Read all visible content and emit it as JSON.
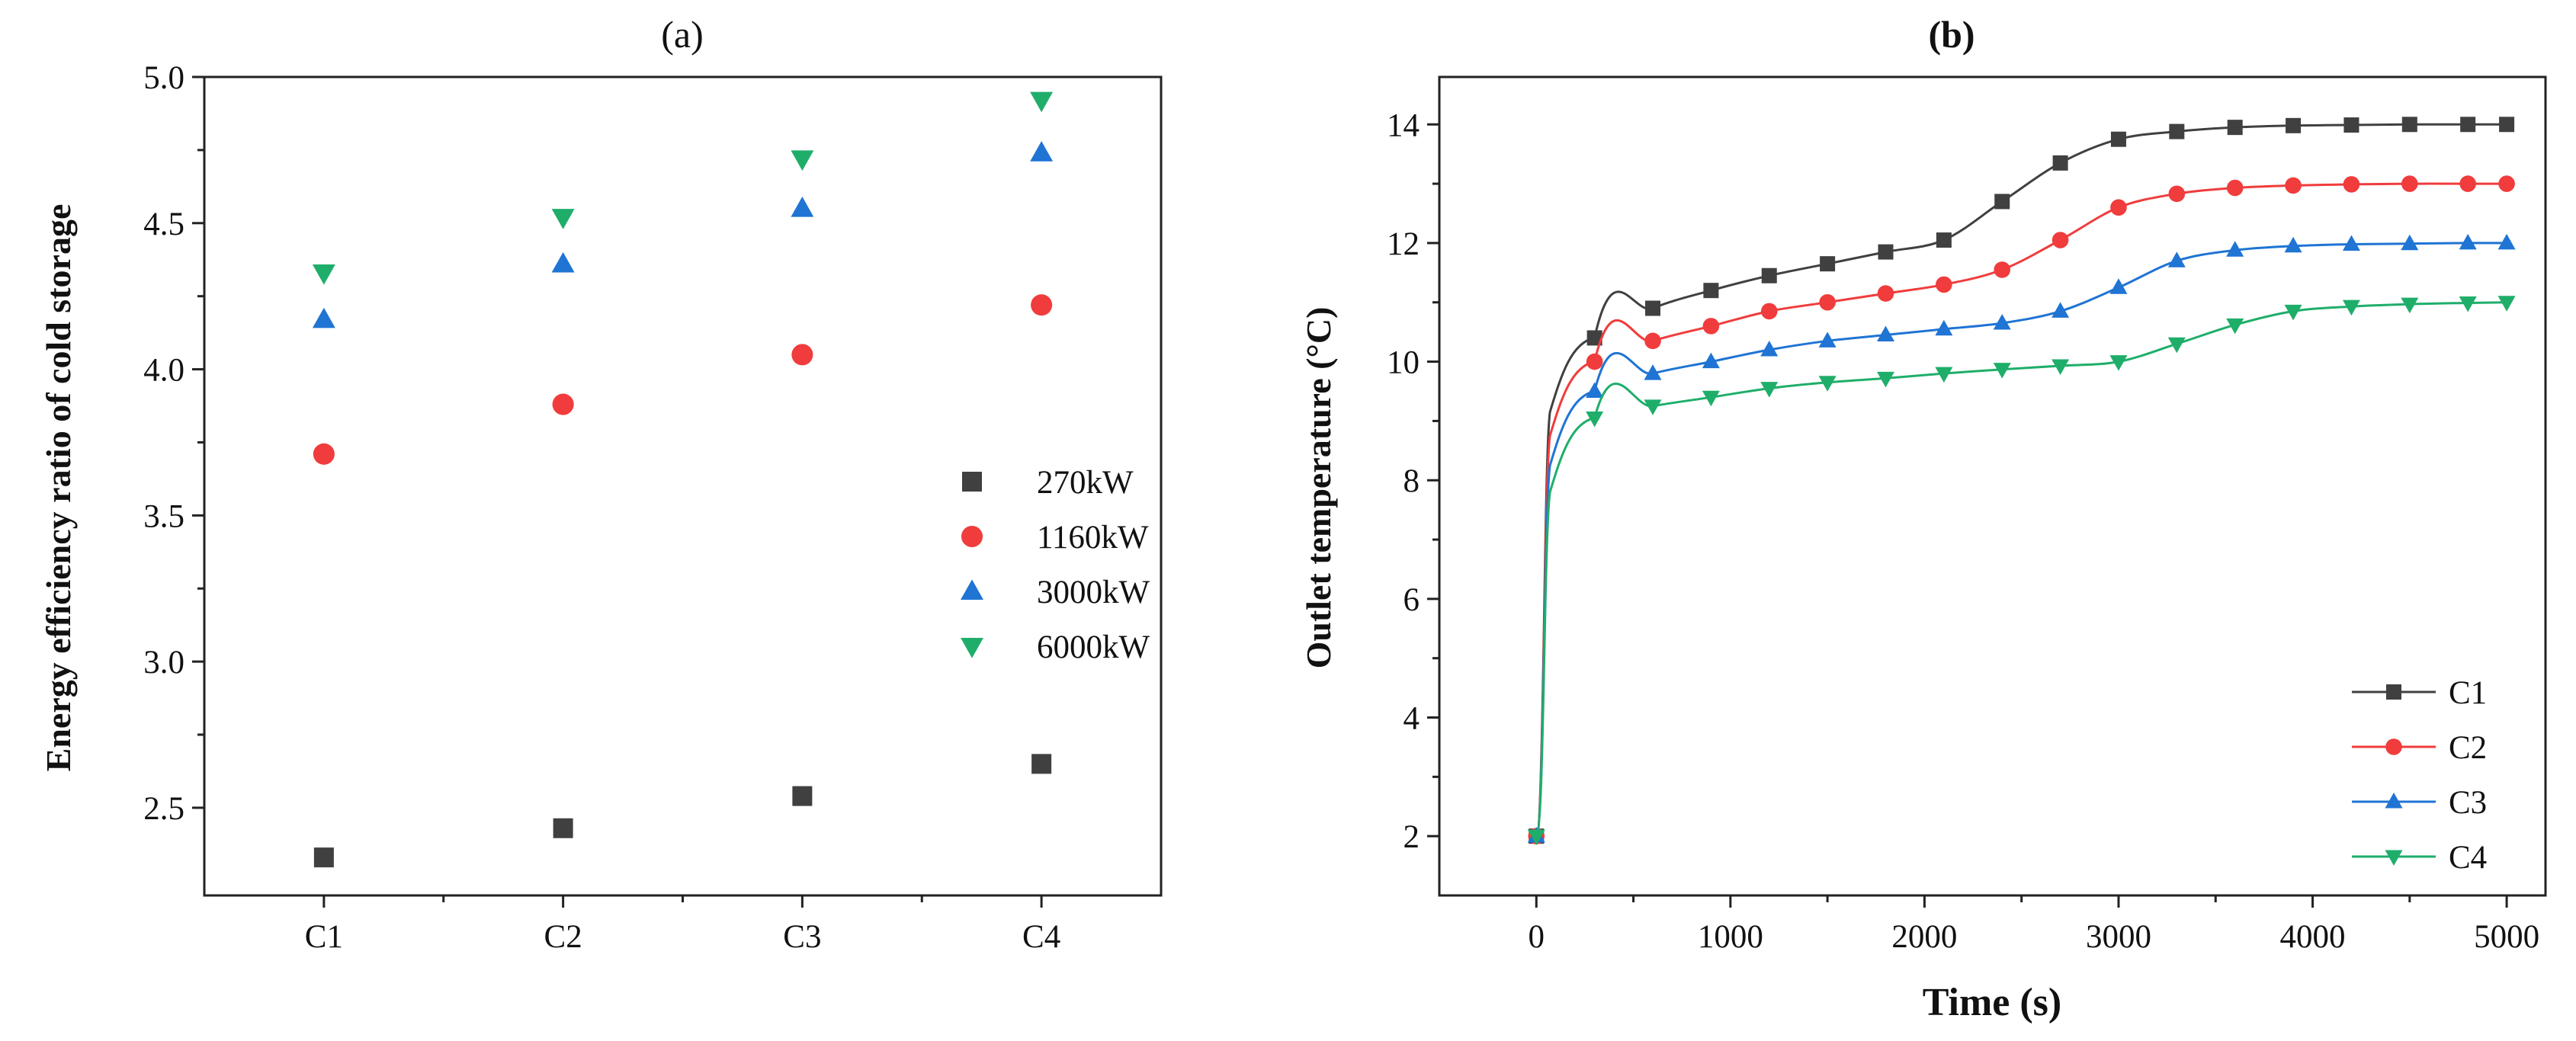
{
  "chart_data": [
    {
      "panel_label": "(a)",
      "type": "scatter",
      "title": "",
      "xlabel": "",
      "ylabel": "Energy efficiency ratio of cold storage",
      "categories": [
        "C1",
        "C2",
        "C3",
        "C4"
      ],
      "ylim": [
        2.2,
        5.0
      ],
      "yticks": [
        "2.5",
        "3.0",
        "3.5",
        "4.0",
        "4.5",
        "5.0"
      ],
      "grid": false,
      "legend_position": "center-right",
      "series": [
        {
          "name": "270kW",
          "marker": "square",
          "color": "#404040",
          "values": [
            2.33,
            2.43,
            2.54,
            2.65
          ]
        },
        {
          "name": "1160kW",
          "marker": "circle",
          "color": "#f03c3c",
          "values": [
            3.71,
            3.88,
            4.05,
            4.22
          ]
        },
        {
          "name": "3000kW",
          "marker": "triangle-up",
          "color": "#1f74d4",
          "values": [
            4.17,
            4.36,
            4.55,
            4.74
          ]
        },
        {
          "name": "6000kW",
          "marker": "triangle-down",
          "color": "#1fae6a",
          "values": [
            4.33,
            4.52,
            4.72,
            4.92
          ]
        }
      ]
    },
    {
      "panel_label": "(b)",
      "type": "line",
      "title": "",
      "xlabel": "Time (s)",
      "ylabel": "Outlet temperature (°C)",
      "xlim": [
        -500,
        5200
      ],
      "ylim": [
        1.0,
        14.8
      ],
      "xticks": [
        "0",
        "1000",
        "2000",
        "3000",
        "4000",
        "5000"
      ],
      "yticks": [
        "2",
        "4",
        "6",
        "8",
        "10",
        "12",
        "14"
      ],
      "grid": false,
      "legend_position": "bottom-right",
      "x": [
        0,
        300,
        600,
        900,
        1200,
        1500,
        1800,
        2100,
        2400,
        2700,
        3000,
        3300,
        3600,
        3900,
        4200,
        4500,
        4800,
        5000
      ],
      "series": [
        {
          "name": "C1",
          "marker": "square",
          "color": "#404040",
          "values": [
            2.0,
            10.4,
            10.9,
            11.2,
            11.45,
            11.65,
            11.85,
            12.05,
            12.7,
            13.35,
            13.75,
            13.88,
            13.95,
            13.98,
            13.99,
            14.0,
            14.0,
            14.0
          ]
        },
        {
          "name": "C2",
          "marker": "circle",
          "color": "#f03c3c",
          "values": [
            2.0,
            10.0,
            10.35,
            10.6,
            10.85,
            11.0,
            11.15,
            11.3,
            11.55,
            12.05,
            12.6,
            12.83,
            12.93,
            12.97,
            12.99,
            13.0,
            13.0,
            13.0
          ]
        },
        {
          "name": "C3",
          "marker": "triangle-up",
          "color": "#1f74d4",
          "values": [
            2.0,
            9.5,
            9.8,
            10.0,
            10.2,
            10.35,
            10.45,
            10.55,
            10.65,
            10.85,
            11.25,
            11.7,
            11.88,
            11.95,
            11.98,
            11.99,
            12.0,
            12.0
          ]
        },
        {
          "name": "C4",
          "marker": "triangle-down",
          "color": "#1fae6a",
          "values": [
            2.0,
            9.05,
            9.25,
            9.4,
            9.55,
            9.65,
            9.72,
            9.8,
            9.87,
            9.93,
            10.0,
            10.3,
            10.62,
            10.85,
            10.93,
            10.97,
            10.99,
            11.0
          ]
        }
      ]
    }
  ]
}
